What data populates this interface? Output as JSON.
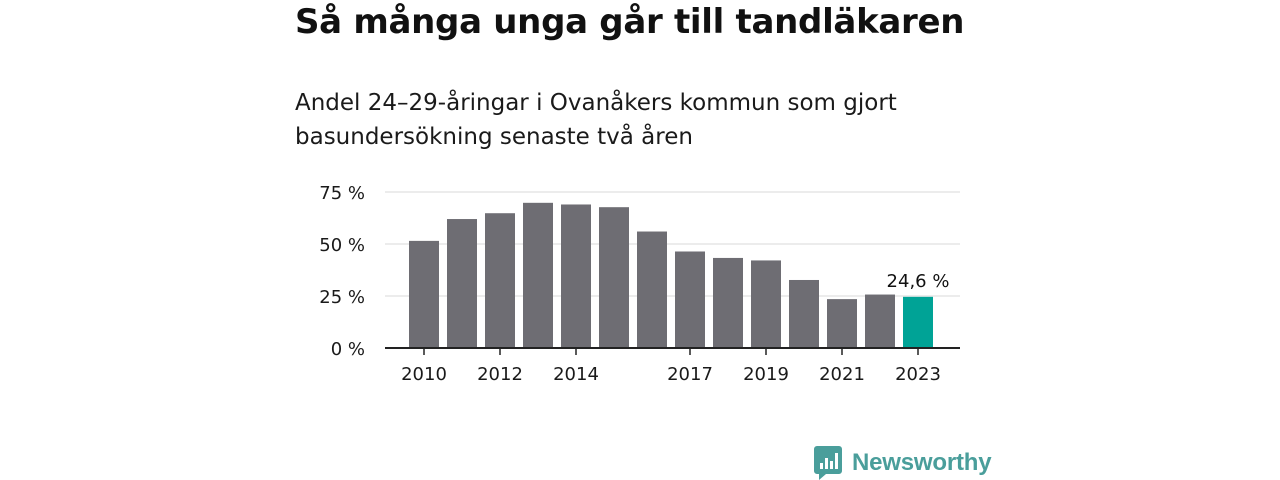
{
  "header": {
    "title": "Så många unga går till tandläkaren",
    "subtitle": "Andel 24–29-åringar i Ovanåkers kommun som gjort basundersökning senaste två åren"
  },
  "brand": {
    "name": "Newsworthy",
    "icon": "newsworthy-logo-icon",
    "color": "#4a9e9b"
  },
  "chart_data": {
    "type": "bar",
    "title": "Så många unga går till tandläkaren",
    "subtitle": "Andel 24–29-åringar i Ovanåkers kommun som gjort basundersökning senaste två åren",
    "categories": [
      2010,
      2011,
      2012,
      2013,
      2014,
      2015,
      2016,
      2017,
      2018,
      2019,
      2020,
      2021,
      2022,
      2023
    ],
    "values": [
      51.5,
      62,
      64.8,
      69.8,
      69,
      67.7,
      56,
      46.4,
      43.3,
      42.1,
      32.7,
      23.5,
      25.7,
      24.6
    ],
    "x_tick_labels": [
      "2010",
      "2012",
      "2014",
      "2017",
      "2019",
      "2021",
      "2023"
    ],
    "y_ticks": [
      0,
      25,
      50,
      75
    ],
    "y_tick_labels": [
      "0 %",
      "25 %",
      "50 %",
      "75 %"
    ],
    "ylim": [
      0,
      75
    ],
    "highlight": {
      "category": 2023,
      "label": "24,6 %"
    },
    "colors": {
      "bar": "#6e6d73",
      "highlight": "#00a396",
      "grid": "#d9d9d9",
      "axis": "#222222"
    },
    "grid": true,
    "legend": "none"
  }
}
